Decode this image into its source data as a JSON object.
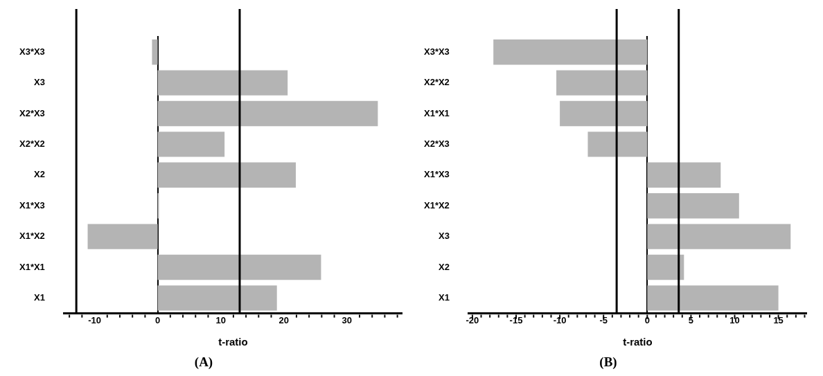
{
  "chart_data": [
    {
      "type": "bar",
      "orientation": "horizontal",
      "title": "(A)",
      "xlabel": "t-ratio",
      "categories": [
        "X3*X3",
        "X3",
        "X2*X3",
        "X2*X2",
        "X2",
        "X1*X3",
        "X1*X2",
        "X1*X1",
        "X1"
      ],
      "values": [
        -0.9,
        20.6,
        34.9,
        10.6,
        21.9,
        0.2,
        -11.1,
        25.9,
        18.9
      ],
      "color": "#b4b4b4",
      "xlim": [
        -14.8,
        38.7
      ],
      "xticks": [
        {
          "value": -14,
          "label": null
        },
        {
          "value": -12,
          "label": null
        },
        -10,
        {
          "value": -8,
          "label": null
        },
        {
          "value": -6,
          "label": null
        },
        {
          "value": -4,
          "label": null
        },
        {
          "value": -2,
          "label": null
        },
        0,
        {
          "value": 2,
          "label": null
        },
        {
          "value": 4,
          "label": null
        },
        {
          "value": 6,
          "label": null
        },
        {
          "value": 8,
          "label": null
        },
        10,
        {
          "value": 12,
          "label": null
        },
        {
          "value": 14,
          "label": null
        },
        {
          "value": 16,
          "label": null
        },
        {
          "value": 18,
          "label": null
        },
        20,
        {
          "value": 22,
          "label": null
        },
        {
          "value": 24,
          "label": null
        },
        {
          "value": 26,
          "label": null
        },
        {
          "value": 28,
          "label": null
        },
        30,
        {
          "value": 32,
          "label": null
        },
        {
          "value": 34,
          "label": null
        },
        {
          "value": 36,
          "label": null
        },
        {
          "value": 38,
          "label": null
        }
      ],
      "ref_lines": [
        {
          "axis": "x",
          "value": -12.9,
          "color": "#000000"
        },
        {
          "axis": "x",
          "value": 13.0,
          "color": "#000000"
        }
      ],
      "legend": false
    },
    {
      "type": "bar",
      "orientation": "horizontal",
      "title": "(B)",
      "xlabel": "t-ratio",
      "categories": [
        "X3*X3",
        "X2*X2",
        "X1*X1",
        "X2*X3",
        "X1*X3",
        "X1*X2",
        "X3",
        "X2",
        "X1"
      ],
      "values": [
        -17.6,
        -10.4,
        -10.0,
        -6.8,
        8.4,
        10.5,
        16.4,
        4.2,
        15.0
      ],
      "color": "#b4b4b4",
      "xlim": [
        -20.4,
        18.2
      ],
      "xticks": [
        -20,
        {
          "value": -19,
          "label": null
        },
        {
          "value": -18,
          "label": null
        },
        {
          "value": -17,
          "label": null
        },
        {
          "value": -16,
          "label": null
        },
        -15,
        {
          "value": -14,
          "label": null
        },
        {
          "value": -13,
          "label": null
        },
        {
          "value": -12,
          "label": null
        },
        {
          "value": -11,
          "label": null
        },
        -10,
        {
          "value": -9,
          "label": null
        },
        {
          "value": -8,
          "label": null
        },
        {
          "value": -7,
          "label": null
        },
        {
          "value": -6,
          "label": null
        },
        -5,
        {
          "value": -4,
          "label": null
        },
        {
          "value": -3,
          "label": null
        },
        {
          "value": -2,
          "label": null
        },
        {
          "value": -1,
          "label": null
        },
        0,
        {
          "value": 1,
          "label": null
        },
        {
          "value": 2,
          "label": null
        },
        {
          "value": 3,
          "label": null
        },
        {
          "value": 4,
          "label": null
        },
        5,
        {
          "value": 6,
          "label": null
        },
        {
          "value": 7,
          "label": null
        },
        {
          "value": 8,
          "label": null
        },
        {
          "value": 9,
          "label": null
        },
        10,
        {
          "value": 11,
          "label": null
        },
        {
          "value": 12,
          "label": null
        },
        {
          "value": 13,
          "label": null
        },
        {
          "value": 14,
          "label": null
        },
        15,
        {
          "value": 16,
          "label": null
        },
        {
          "value": 17,
          "label": null
        },
        {
          "value": 18,
          "label": null
        }
      ],
      "ref_lines": [
        {
          "axis": "x",
          "value": -3.5,
          "color": "#000000"
        },
        {
          "axis": "x",
          "value": 3.6,
          "color": "#000000"
        }
      ],
      "legend": false
    }
  ]
}
